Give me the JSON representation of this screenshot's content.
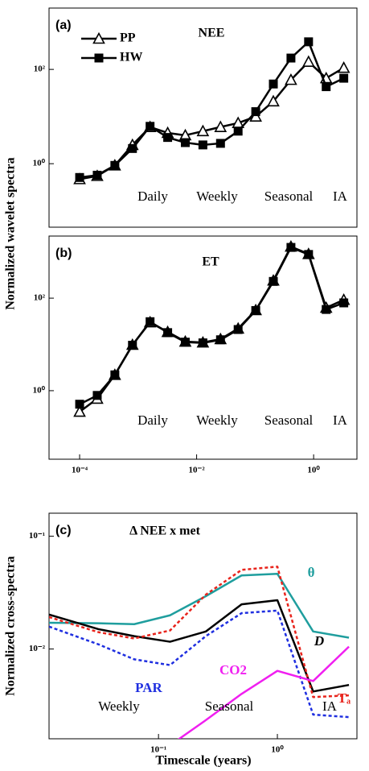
{
  "chart_data": [
    {
      "type": "line",
      "panel_label": "(a)",
      "title": "NEE",
      "ylabel": "Normalized wavelet spectra",
      "x": [
        0.0001,
        0.0002,
        0.0004,
        0.0008,
        0.0016,
        0.0032,
        0.0064,
        0.0128,
        0.0256,
        0.0512,
        0.1024,
        0.2048,
        0.4096,
        0.8192,
        1.6384,
        3.2768
      ],
      "xlim": [
        3e-05,
        5.5
      ],
      "xscale": "log",
      "ylim": [
        0.045,
        2000
      ],
      "yscale": "log",
      "yticks": [
        {
          "value": 1,
          "label": "10⁰"
        },
        {
          "value": 100,
          "label": "10²"
        }
      ],
      "legend": "upper left",
      "series": [
        {
          "name": "PP",
          "color": "#000000",
          "marker": "triangle-open",
          "values": [
            0.47,
            0.55,
            0.92,
            2.5,
            6.0,
            4.5,
            4.0,
            4.9,
            6.0,
            7.3,
            10,
            21,
            60,
            145,
            65,
            108
          ]
        },
        {
          "name": "HW",
          "color": "#000000",
          "marker": "square",
          "values": [
            0.51,
            0.57,
            0.92,
            2.1,
            6.2,
            3.6,
            2.8,
            2.5,
            2.7,
            4.9,
            12.7,
            49,
            174,
            385,
            43,
            65
          ]
        }
      ],
      "annotations": [
        "Daily",
        "Weekly",
        "Seasonal",
        "IA"
      ]
    },
    {
      "type": "line",
      "panel_label": "(b)",
      "title": "ET",
      "x": [
        0.0001,
        0.0002,
        0.0004,
        0.0008,
        0.0016,
        0.0032,
        0.0064,
        0.0128,
        0.0256,
        0.0512,
        0.1024,
        0.2048,
        0.4096,
        0.8192,
        1.6384,
        3.2768
      ],
      "xlim": [
        3e-05,
        5.5
      ],
      "xscale": "log",
      "ylim": [
        0.033,
        2200
      ],
      "yscale": "log",
      "xticks": [
        {
          "value": 0.0001,
          "label": "10⁻⁴"
        },
        {
          "value": 0.01,
          "label": "10⁻²"
        },
        {
          "value": 1,
          "label": "10⁰"
        }
      ],
      "yticks": [
        {
          "value": 1,
          "label": "10⁰"
        },
        {
          "value": 100,
          "label": "10²"
        }
      ],
      "series": [
        {
          "color": "#000000",
          "marker": "triangle-open",
          "values": [
            0.35,
            0.67,
            2.2,
            9.8,
            30,
            18.6,
            11.5,
            11,
            13,
            22,
            55,
            240,
            1300,
            900,
            62,
            92
          ]
        },
        {
          "color": "#000000",
          "marker": "square",
          "values": [
            0.51,
            0.79,
            2.2,
            9.6,
            31,
            18,
            11.2,
            10.8,
            12.6,
            21,
            54,
            230,
            1250,
            880,
            57,
            79
          ]
        }
      ],
      "annotations": [
        "Daily",
        "Weekly",
        "Seasonal",
        "IA"
      ]
    },
    {
      "type": "line",
      "panel_label": "(c)",
      "title": "Δ NEE x met",
      "ylabel": "Normalized cross-spectra",
      "xlabel": "Timescale (years)",
      "x": [
        0.012,
        0.03125,
        0.0625,
        0.125,
        0.25,
        0.5,
        1,
        2,
        4
      ],
      "xlim": [
        0.012,
        4.67
      ],
      "xscale": "log",
      "ylim": [
        0.0016,
        0.16
      ],
      "yscale": "log",
      "xticks": [
        {
          "value": 0.1,
          "label": "10⁻¹"
        },
        {
          "value": 1,
          "label": "10⁰"
        }
      ],
      "yticks": [
        {
          "value": 0.1,
          "label": "10⁻¹"
        },
        {
          "value": 0.01,
          "label": "10⁻²"
        }
      ],
      "series": [
        {
          "name": "θ",
          "color": "#1f9e9e",
          "values": [
            0.0171,
            0.0169,
            0.0166,
            0.0199,
            0.0294,
            0.0449,
            0.0464,
            0.0143,
            0.0126
          ]
        },
        {
          "name": "D",
          "color": "#000000",
          "values": [
            0.0202,
            0.015,
            0.013,
            0.0116,
            0.0143,
            0.0249,
            0.0271,
            0.0042,
            0.0048
          ]
        },
        {
          "name": "Tₐ",
          "color": "#e8241c",
          "dashed": true,
          "values": [
            0.0192,
            0.0141,
            0.0124,
            0.0146,
            0.0303,
            0.0503,
            0.0537,
            0.00375,
            0.00388
          ]
        },
        {
          "name": "PAR",
          "color": "#1f2fe0",
          "dashed": true,
          "values": [
            0.0158,
            0.011,
            0.0081,
            0.0072,
            0.013,
            0.0208,
            0.0219,
            0.00262,
            0.00249
          ]
        },
        {
          "name": "CO2",
          "color": "#f01ff0",
          "values": [
            null,
            null,
            null,
            0.0014,
            0.00234,
            0.004,
            0.0064,
            0.0052,
            0.0105
          ]
        }
      ],
      "annotations": [
        "Weekly",
        "Seasonal",
        "IA"
      ]
    }
  ]
}
